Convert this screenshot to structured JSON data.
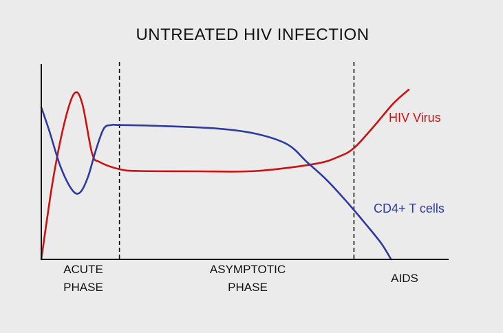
{
  "chart_data": {
    "type": "line",
    "title": "UNTREATED HIV INFECTION",
    "xlabel": "",
    "ylabel": "",
    "x_range": [
      0,
      10
    ],
    "y_range": [
      0,
      100
    ],
    "grid": false,
    "legend": "inline labels at right",
    "phases": [
      {
        "lines": [
          "ACUTE",
          "PHASE"
        ],
        "start": 0,
        "end": 2
      },
      {
        "lines": [
          "ASYMPTOTIC",
          "PHASE"
        ],
        "start": 2,
        "end": 8
      },
      {
        "lines": [
          "AIDS"
        ],
        "start": 8,
        "end": 10
      }
    ],
    "dividers": [
      2,
      8
    ],
    "series": [
      {
        "name": "HIV Virus",
        "color": "#cc1111",
        "points": [
          [
            0,
            0
          ],
          [
            0.3,
            45
          ],
          [
            0.6,
            78
          ],
          [
            0.85,
            94
          ],
          [
            1.05,
            88
          ],
          [
            1.3,
            60
          ],
          [
            1.5,
            55
          ],
          [
            2,
            51
          ],
          [
            2.5,
            50
          ],
          [
            4,
            49.8
          ],
          [
            5.5,
            50
          ],
          [
            7,
            54
          ],
          [
            7.6,
            58
          ],
          [
            8,
            63
          ],
          [
            8.5,
            75
          ],
          [
            9,
            88
          ],
          [
            9.4,
            96
          ]
        ]
      },
      {
        "name": "CD4+ T cells",
        "color": "#2d3a9e",
        "points": [
          [
            0,
            86
          ],
          [
            0.2,
            73
          ],
          [
            0.5,
            52
          ],
          [
            0.8,
            39
          ],
          [
            1,
            38
          ],
          [
            1.2,
            47
          ],
          [
            1.4,
            62
          ],
          [
            1.6,
            74
          ],
          [
            1.8,
            76
          ],
          [
            2,
            76
          ],
          [
            3,
            75.5
          ],
          [
            4.5,
            74
          ],
          [
            5.5,
            71
          ],
          [
            6.3,
            65
          ],
          [
            6.8,
            55
          ],
          [
            7.3,
            45
          ],
          [
            7.8,
            33
          ],
          [
            8.3,
            20
          ],
          [
            8.7,
            9
          ],
          [
            8.95,
            0
          ]
        ]
      }
    ]
  }
}
